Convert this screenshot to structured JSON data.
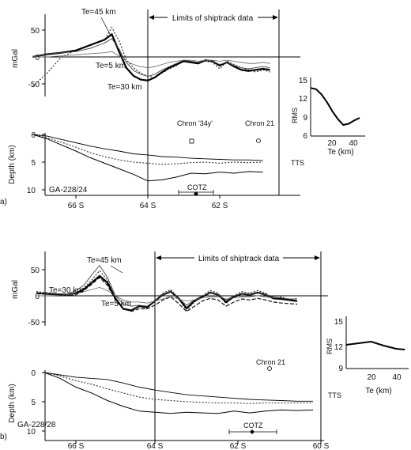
{
  "chart_data": [
    {
      "type": "line",
      "panel": "a",
      "panel_label": "a)",
      "profile_label": "GA-228/24",
      "limits_label": "Limits of shiptrack data",
      "gravity": {
        "ylabel": "mGal",
        "yticks": [
          "50",
          "0",
          "-50"
        ],
        "ylim": [
          -100,
          75
        ],
        "annotations": [
          "Te=45 km",
          "Te=5 km",
          "Te=30 km"
        ],
        "x": [
          67.2,
          66.8,
          66.4,
          66.0,
          65.6,
          65.2,
          65.0,
          64.8,
          64.6,
          64.4,
          64.2,
          64.0,
          63.8,
          63.6,
          63.4,
          63.2,
          63.0,
          62.8,
          62.6,
          62.4,
          62.2,
          62.0,
          61.8,
          61.6,
          61.4,
          61.2,
          61.0,
          60.8,
          60.6
        ],
        "series": [
          {
            "values": [
              -55,
              -30,
              0,
              12,
              22,
              32,
              55,
              30,
              -5,
              -20,
              -30,
              -36,
              -38,
              -30,
              -22,
              -16,
              -6,
              -10,
              -12,
              -8,
              -10,
              -22,
              -8,
              -14,
              -20,
              -24,
              -28,
              -24,
              -28
            ]
          },
          {
            "values": [
              0,
              5,
              8,
              12,
              22,
              32,
              42,
              10,
              -20,
              -35,
              -42,
              -44,
              -38,
              -28,
              -20,
              -14,
              -8,
              -10,
              -12,
              -6,
              -8,
              -16,
              -10,
              -18,
              -24,
              -26,
              -24,
              -22,
              -24
            ]
          },
          {
            "values": [
              0,
              5,
              8,
              10,
              16,
              26,
              34,
              15,
              -10,
              -25,
              -32,
              -36,
              -32,
              -24,
              -18,
              -12,
              -6,
              -8,
              -10,
              -6,
              -8,
              -14,
              -10,
              -16,
              -20,
              -22,
              -20,
              -18,
              -20
            ]
          },
          {
            "values": [
              0,
              0,
              2,
              4,
              6,
              8,
              10,
              2,
              -8,
              -14,
              -18,
              -20,
              -18,
              -14,
              -10,
              -8,
              -6,
              -6,
              -8,
              -6,
              -6,
              -8,
              -6,
              -8,
              -10,
              -12,
              -12,
              -10,
              -12
            ]
          }
        ]
      },
      "rms": {
        "ylabel": "RMS",
        "xlabel": "Te (km)",
        "yticks": [
          "15",
          "12",
          "9",
          "6"
        ],
        "xticks": [
          "20",
          "40"
        ],
        "xlim": [
          0,
          50
        ],
        "ylim": [
          6,
          15
        ],
        "x": [
          0,
          5,
          10,
          15,
          20,
          25,
          30,
          35,
          40,
          45
        ],
        "values": [
          13.4,
          13.2,
          12.4,
          11.2,
          9.8,
          8.6,
          7.7,
          7.9,
          8.4,
          8.8
        ]
      },
      "depth": {
        "ylabel": "Depth (km)",
        "yticks": [
          "0",
          "5",
          "10"
        ],
        "ylim": [
          0,
          10
        ],
        "annotations": [
          "Chron '34y'",
          "Chron 21",
          "TTS",
          "COTZ"
        ],
        "chron_points": [
          {
            "label": "Chron '34y'",
            "x": 63.4,
            "depth": 1.2
          },
          {
            "label": "Chron 21",
            "x": 61.4,
            "depth": 1.2
          }
        ],
        "cotz": {
          "center": 63.3,
          "range": [
            63.8,
            62.8
          ]
        },
        "tts_depth": 5.1,
        "x": [
          67.2,
          66.8,
          66.4,
          66.0,
          65.6,
          65.2,
          64.8,
          64.4,
          64.0,
          63.6,
          63.2,
          62.8,
          62.4,
          62.0,
          61.6,
          61.2,
          60.8
        ],
        "series": [
          {
            "name": "seafloor",
            "values": [
              0,
              0.3,
              0.9,
              1.5,
              2.1,
              2.6,
              3.0,
              3.5,
              3.7,
              4.0,
              4.1,
              4.3,
              4.4,
              4.5,
              4.6,
              4.6,
              4.7
            ]
          },
          {
            "name": "dotted",
            "values": [
              0,
              0.6,
              1.4,
              2.3,
              3.3,
              4.0,
              4.6,
              5.0,
              5.2,
              5.4,
              5.3,
              5.1,
              5.0,
              5.2,
              5.0,
              5.1,
              5.0
            ]
          },
          {
            "name": "basement",
            "values": [
              0,
              0.8,
              1.9,
              3.0,
              4.2,
              5.2,
              6.2,
              7.2,
              8.4,
              8.2,
              7.7,
              7.0,
              7.1,
              6.8,
              7.0,
              6.7,
              6.8
            ]
          }
        ]
      },
      "xticks": [
        "66 S",
        "64 S",
        "62 S"
      ]
    },
    {
      "type": "line",
      "panel": "b",
      "panel_label": "b)",
      "profile_label": "GA-228/28",
      "limits_label": "Limits of shiptrack data",
      "gravity": {
        "ylabel": "mGal",
        "yticks": [
          "50",
          "0",
          "-50"
        ],
        "ylim": [
          -75,
          75
        ],
        "annotations": [
          "Te=45 km",
          "Te=30 km",
          "Te=5 km"
        ],
        "x": [
          67.0,
          66.6,
          66.2,
          66.0,
          65.8,
          65.6,
          65.4,
          65.2,
          65.0,
          64.8,
          64.6,
          64.4,
          64.2,
          64.0,
          63.8,
          63.6,
          63.4,
          63.2,
          63.0,
          62.8,
          62.6,
          62.4,
          62.2,
          62.0,
          61.8,
          61.6,
          61.4,
          61.2,
          61.0,
          60.8,
          60.6,
          60.4
        ],
        "series": [
          {
            "values": [
              8,
              5,
              2,
              6,
              15,
              30,
              48,
              30,
              -5,
              -25,
              -28,
              -20,
              -24,
              -10,
              5,
              12,
              -5,
              -28,
              -12,
              0,
              10,
              5,
              -15,
              0,
              8,
              5,
              10,
              5,
              -5,
              -2,
              -8,
              -5
            ]
          },
          {
            "values": [
              5,
              3,
              2,
              5,
              12,
              25,
              38,
              25,
              -5,
              -25,
              -28,
              -20,
              -22,
              -10,
              2,
              8,
              -5,
              -24,
              -10,
              -2,
              6,
              2,
              -12,
              -2,
              4,
              2,
              6,
              2,
              -5,
              -6,
              -8,
              -10
            ]
          },
          {
            "values": [
              5,
              3,
              4,
              10,
              20,
              40,
              58,
              35,
              0,
              -15,
              -20,
              -18,
              -20,
              -10,
              2,
              8,
              -5,
              -18,
              -8,
              0,
              5,
              2,
              -8,
              0,
              4,
              2,
              5,
              2,
              -2,
              -4,
              -6,
              -6
            ]
          },
          {
            "values": [
              0,
              0,
              2,
              4,
              8,
              12,
              16,
              10,
              0,
              -8,
              -12,
              -12,
              -14,
              -10,
              -6,
              -2,
              -6,
              -10,
              -8,
              -4,
              -2,
              -2,
              -6,
              -4,
              -2,
              -2,
              0,
              -2,
              -4,
              -4,
              -6,
              -6
            ]
          },
          {
            "values": [
              5,
              3,
              0,
              2,
              10,
              22,
              35,
              20,
              -8,
              -25,
              -30,
              -25,
              -25,
              -18,
              -8,
              -2,
              -15,
              -30,
              -20,
              -10,
              -5,
              -8,
              -20,
              -12,
              -6,
              -8,
              -5,
              -8,
              -12,
              -14,
              -15,
              -16
            ]
          }
        ]
      },
      "rms": {
        "ylabel": "RMS",
        "xlabel": "Te (km)",
        "yticks": [
          "15",
          "12",
          "9"
        ],
        "xticks": [
          "20",
          "40"
        ],
        "xlim": [
          0,
          50
        ],
        "ylim": [
          9,
          15
        ],
        "x": [
          0,
          10,
          20,
          30,
          40,
          47
        ],
        "values": [
          12.0,
          12.2,
          12.4,
          11.9,
          11.5,
          11.4
        ]
      },
      "depth": {
        "ylabel": "Depth (km)",
        "yticks": [
          "0",
          "5",
          "10"
        ],
        "ylim": [
          0,
          10
        ],
        "annotations": [
          "Chron 21",
          "TTS",
          "COTZ"
        ],
        "chron_points": [
          {
            "label": "Chron 21",
            "x": 61.6,
            "depth": 0.8
          }
        ],
        "cotz": {
          "center": 61.9,
          "range": [
            62.6,
            61.2
          ]
        },
        "tts_depth": 4.7,
        "x": [
          66.8,
          66.4,
          66.0,
          65.6,
          65.2,
          64.8,
          64.4,
          64.0,
          63.6,
          63.2,
          62.8,
          62.4,
          62.0,
          61.6,
          61.2,
          60.8,
          60.4,
          60.0
        ],
        "series": [
          {
            "name": "seafloor",
            "values": [
              0,
              0.4,
              0.8,
              1.0,
              1.2,
              1.8,
              2.5,
              3.0,
              3.4,
              3.8,
              4.0,
              4.2,
              4.4,
              4.6,
              4.7,
              4.8,
              4.9,
              4.9
            ]
          },
          {
            "name": "dotted",
            "values": [
              0,
              0.6,
              1.4,
              2.0,
              2.8,
              3.5,
              4.2,
              4.6,
              4.8,
              5.0,
              5.1,
              5.2,
              5.2,
              5.3,
              5.2,
              5.2,
              5.2,
              5.2
            ]
          },
          {
            "name": "basement",
            "values": [
              0,
              1.0,
              2.5,
              3.5,
              4.8,
              5.8,
              6.6,
              6.8,
              7.0,
              6.8,
              6.9,
              7.0,
              6.6,
              6.9,
              6.6,
              6.4,
              6.5,
              6.4
            ]
          }
        ]
      },
      "xticks": [
        "66 S",
        "64 S",
        "62 S",
        "60 S"
      ]
    }
  ]
}
